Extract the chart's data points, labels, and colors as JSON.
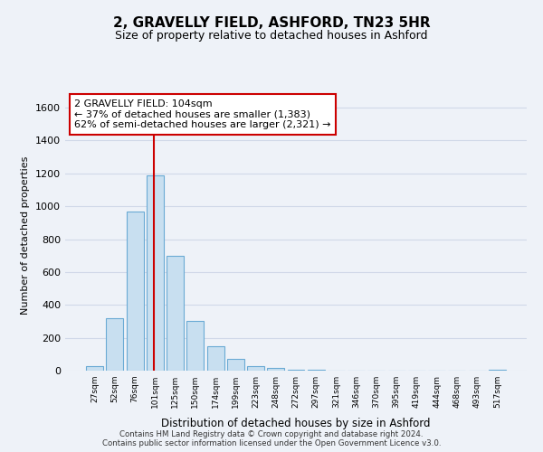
{
  "title": "2, GRAVELLY FIELD, ASHFORD, TN23 5HR",
  "subtitle": "Size of property relative to detached houses in Ashford",
  "xlabel": "Distribution of detached houses by size in Ashford",
  "ylabel": "Number of detached properties",
  "bar_labels": [
    "27sqm",
    "52sqm",
    "76sqm",
    "101sqm",
    "125sqm",
    "150sqm",
    "174sqm",
    "199sqm",
    "223sqm",
    "248sqm",
    "272sqm",
    "297sqm",
    "321sqm",
    "346sqm",
    "370sqm",
    "395sqm",
    "419sqm",
    "444sqm",
    "468sqm",
    "493sqm",
    "517sqm"
  ],
  "bar_values": [
    30,
    320,
    970,
    1190,
    700,
    305,
    150,
    70,
    25,
    15,
    5,
    3,
    2,
    1,
    1,
    1,
    0,
    1,
    0,
    0,
    5
  ],
  "bar_color": "#c8dff0",
  "bar_edge_color": "#6aaad4",
  "vline_color": "#cc0000",
  "vline_index": 3,
  "annotation_title": "2 GRAVELLY FIELD: 104sqm",
  "annotation_line1": "← 37% of detached houses are smaller (1,383)",
  "annotation_line2": "62% of semi-detached houses are larger (2,321) →",
  "annotation_box_color": "#ffffff",
  "annotation_box_edge": "#cc0000",
  "ylim": [
    0,
    1650
  ],
  "yticks": [
    0,
    200,
    400,
    600,
    800,
    1000,
    1200,
    1400,
    1600
  ],
  "footer_line1": "Contains HM Land Registry data © Crown copyright and database right 2024.",
  "footer_line2": "Contains public sector information licensed under the Open Government Licence v3.0.",
  "background_color": "#eef2f8",
  "grid_color": "#d0d8e8",
  "title_fontsize": 11,
  "subtitle_fontsize": 9
}
